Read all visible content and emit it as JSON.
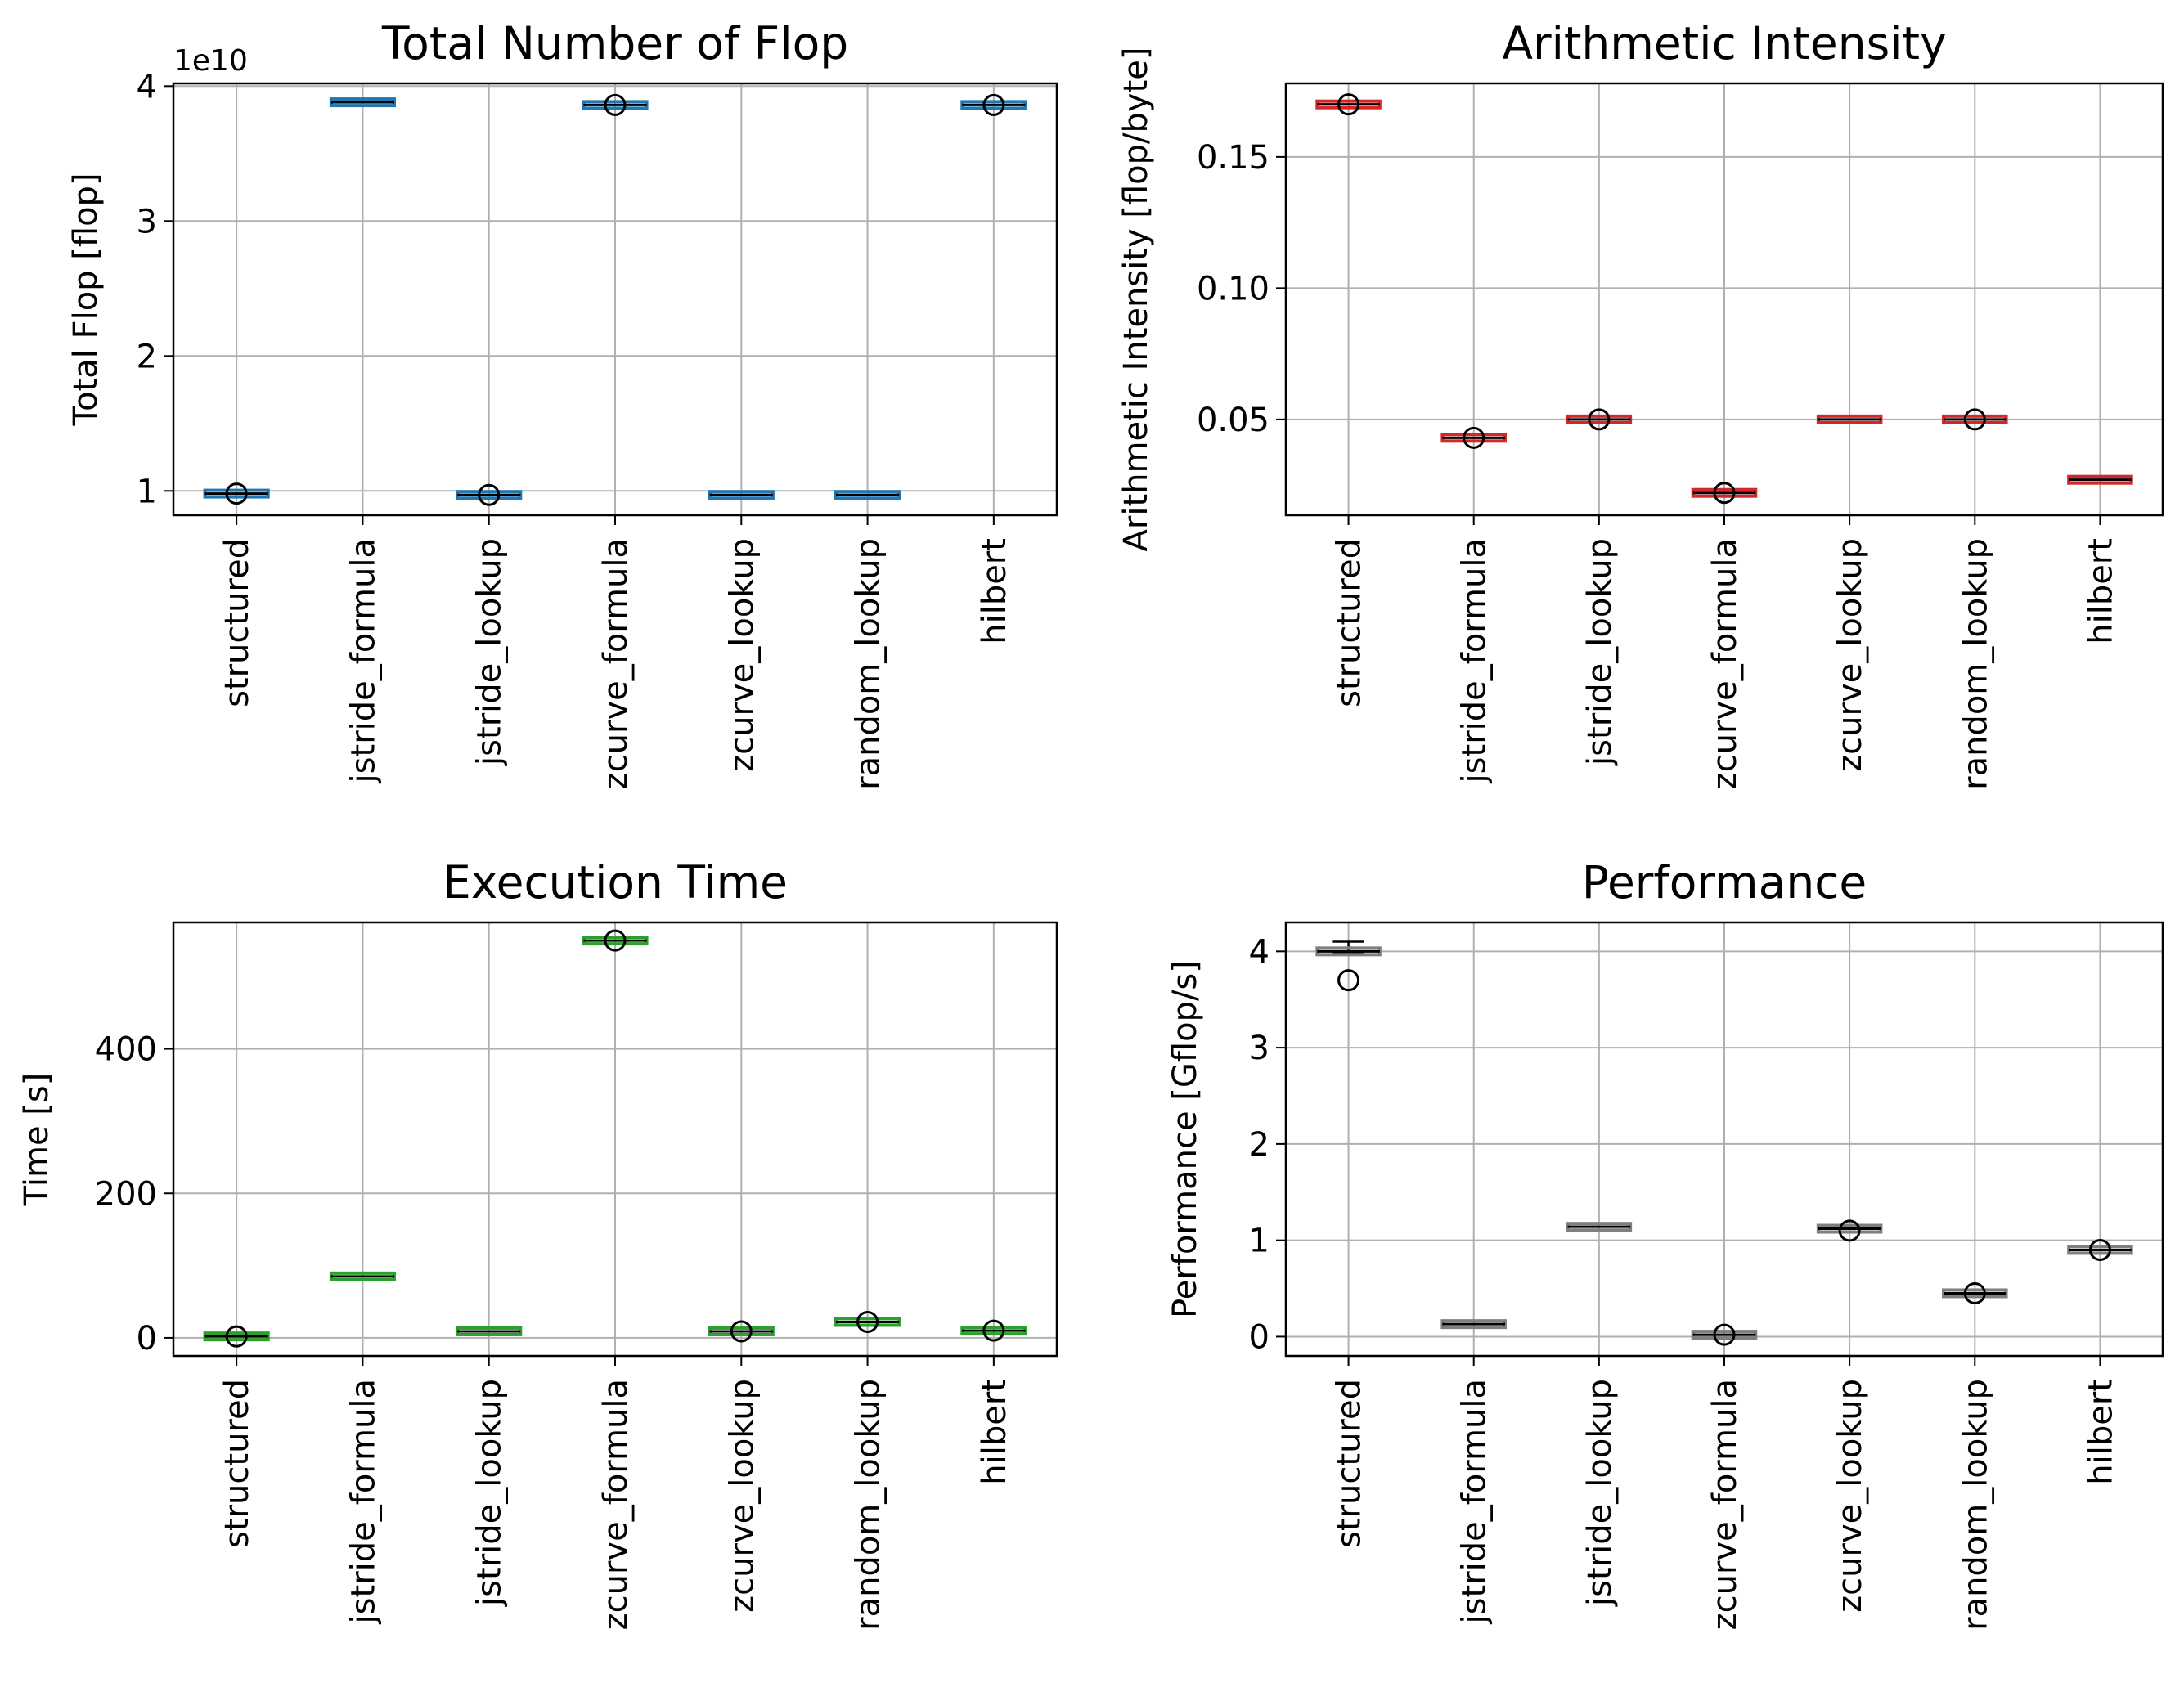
{
  "chart_data": [
    {
      "type": "box",
      "title": "Total Number of Flop",
      "ylabel": "Total Flop [flop]",
      "xlabel": "",
      "offset_label": "1e10",
      "ylim": [
        0.82,
        4.02
      ],
      "yticks": [
        1,
        2,
        3,
        4
      ],
      "ytick_labels": [
        "1",
        "2",
        "3",
        "4"
      ],
      "grid": true,
      "box_color": "#1f77b4",
      "categories": [
        "structured",
        "jstride_formula",
        "jstride_lookup",
        "zcurve_formula",
        "zcurve_lookup",
        "random_lookup",
        "hilbert"
      ],
      "values": [
        0.98,
        3.88,
        0.97,
        3.86,
        0.97,
        0.97,
        3.86
      ],
      "fliers": [
        [
          0.98
        ],
        [],
        [
          0.97
        ],
        [
          3.86
        ],
        [],
        [],
        [
          3.86
        ]
      ]
    },
    {
      "type": "box",
      "title": "Arithmetic Intensity",
      "ylabel": "Arithmetic Intensity [flop/byte]",
      "xlabel": "",
      "ylim": [
        0.0135,
        0.178
      ],
      "yticks": [
        0.05,
        0.1,
        0.15
      ],
      "ytick_labels": [
        "0.05",
        "0.10",
        "0.15"
      ],
      "grid": true,
      "box_color": "#d62728",
      "categories": [
        "structured",
        "jstride_formula",
        "jstride_lookup",
        "zcurve_formula",
        "zcurve_lookup",
        "random_lookup",
        "hilbert"
      ],
      "values": [
        0.17,
        0.043,
        0.05,
        0.022,
        0.05,
        0.05,
        0.027
      ],
      "fliers": [
        [
          0.17
        ],
        [
          0.043
        ],
        [
          0.05
        ],
        [
          0.022
        ],
        [],
        [
          0.05
        ],
        []
      ]
    },
    {
      "type": "box",
      "title": "Execution Time",
      "ylabel": "Time [s]",
      "xlabel": "",
      "ylim": [
        -25,
        575
      ],
      "yticks": [
        0,
        200,
        400
      ],
      "ytick_labels": [
        "0",
        "200",
        "400"
      ],
      "grid": true,
      "box_color": "#2ca02c",
      "categories": [
        "structured",
        "jstride_formula",
        "jstride_lookup",
        "zcurve_formula",
        "zcurve_lookup",
        "random_lookup",
        "hilbert"
      ],
      "values": [
        2,
        85,
        9,
        550,
        9,
        22,
        10
      ],
      "fliers": [
        [
          2
        ],
        [],
        [],
        [
          550
        ],
        [
          9
        ],
        [
          22
        ],
        [
          10
        ]
      ]
    },
    {
      "type": "box",
      "title": "Performance",
      "ylabel": "Performance [Gflop/s]",
      "xlabel": "",
      "ylim": [
        -0.2,
        4.3
      ],
      "yticks": [
        0,
        1,
        2,
        3,
        4
      ],
      "ytick_labels": [
        "0",
        "1",
        "2",
        "3",
        "4"
      ],
      "grid": true,
      "box_color": "#7f7f7f",
      "categories": [
        "structured",
        "jstride_formula",
        "jstride_lookup",
        "zcurve_formula",
        "zcurve_lookup",
        "random_lookup",
        "hilbert"
      ],
      "values": [
        4.0,
        0.13,
        1.14,
        0.02,
        1.12,
        0.45,
        0.9
      ],
      "whiskers": [
        [
          3.98,
          4.1
        ],
        null,
        null,
        null,
        null,
        null,
        null
      ],
      "fliers": [
        [
          3.7
        ],
        [],
        [],
        [
          0.02
        ],
        [
          1.1
        ],
        [
          0.45
        ],
        [
          0.9
        ]
      ]
    }
  ]
}
